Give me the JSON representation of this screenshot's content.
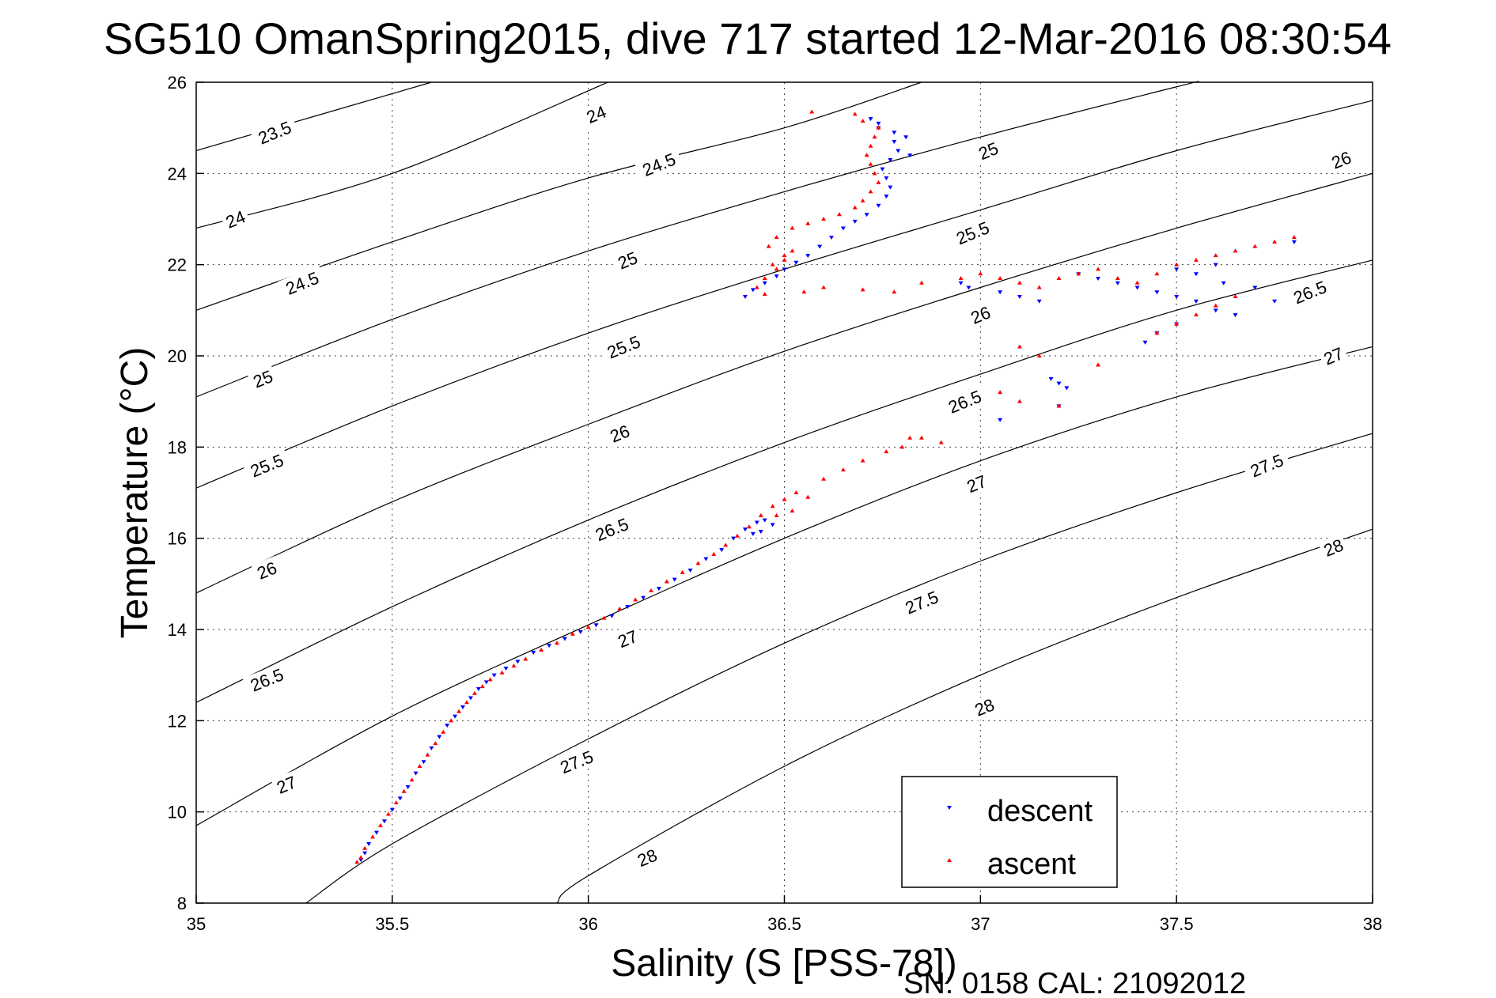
{
  "chart_data": {
    "type": "scatter",
    "title": "SG510 OmanSpring2015, dive 717 started 12-Mar-2016 08:30:54",
    "xlabel": "Salinity (S [PSS-78])",
    "ylabel": "Temperature (°C)",
    "xlim": [
      35,
      38
    ],
    "ylim": [
      8,
      26
    ],
    "x_ticks": [
      "35",
      "35.5",
      "36",
      "36.5",
      "37",
      "37.5",
      "38"
    ],
    "y_ticks": [
      "8",
      "10",
      "12",
      "14",
      "16",
      "18",
      "20",
      "22",
      "24",
      "26"
    ],
    "grid": true,
    "legend_position": "bottom-right",
    "footer": "SN: 0158  CAL: 21092012",
    "contours": {
      "color": "#000000",
      "lines": [
        {
          "level": "23.5",
          "points": [
            [
              35.0,
              24.5
            ],
            [
              35.6,
              26.0
            ]
          ]
        },
        {
          "level": "24",
          "points": [
            [
              35.0,
              22.8
            ],
            [
              35.5,
              24.0
            ],
            [
              36.05,
              26.0
            ]
          ]
        },
        {
          "level": "24.5",
          "points": [
            [
              35.0,
              21.0
            ],
            [
              35.5,
              22.5
            ],
            [
              36.0,
              23.9
            ],
            [
              36.5,
              25.0
            ],
            [
              36.85,
              26.0
            ]
          ]
        },
        {
          "level": "25",
          "points": [
            [
              35.0,
              19.1
            ],
            [
              35.5,
              20.8
            ],
            [
              36.0,
              22.3
            ],
            [
              36.5,
              23.6
            ],
            [
              37.0,
              24.8
            ],
            [
              37.5,
              25.9
            ],
            [
              37.55,
              26.0
            ]
          ]
        },
        {
          "level": "25.5",
          "points": [
            [
              35.0,
              17.1
            ],
            [
              35.5,
              18.9
            ],
            [
              36.0,
              20.5
            ],
            [
              36.5,
              21.9
            ],
            [
              37.0,
              23.2
            ],
            [
              37.5,
              24.5
            ],
            [
              38.0,
              25.6
            ]
          ]
        },
        {
          "level": "26",
          "points": [
            [
              35.0,
              14.8
            ],
            [
              35.5,
              16.8
            ],
            [
              36.0,
              18.5
            ],
            [
              36.5,
              20.1
            ],
            [
              37.0,
              21.5
            ],
            [
              37.5,
              22.8
            ],
            [
              38.0,
              24.0
            ]
          ]
        },
        {
          "level": "26.5",
          "points": [
            [
              35.0,
              12.4
            ],
            [
              35.5,
              14.5
            ],
            [
              36.0,
              16.4
            ],
            [
              36.5,
              18.1
            ],
            [
              37.0,
              19.6
            ],
            [
              37.5,
              21.0
            ],
            [
              38.0,
              22.1
            ]
          ]
        },
        {
          "level": "27",
          "points": [
            [
              35.0,
              9.7
            ],
            [
              35.5,
              12.1
            ],
            [
              36.0,
              14.1
            ],
            [
              36.5,
              16.0
            ],
            [
              37.0,
              17.7
            ],
            [
              37.5,
              19.1
            ],
            [
              38.0,
              20.2
            ]
          ]
        },
        {
          "level": "27.5",
          "points": [
            [
              35.28,
              8.0
            ],
            [
              35.5,
              9.3
            ],
            [
              36.0,
              11.6
            ],
            [
              36.5,
              13.7
            ],
            [
              37.0,
              15.5
            ],
            [
              37.5,
              17.0
            ],
            [
              38.0,
              18.3
            ]
          ]
        },
        {
          "level": "28",
          "points": [
            [
              35.92,
              8.0
            ],
            [
              36.0,
              8.6
            ],
            [
              36.5,
              11.0
            ],
            [
              37.0,
              13.0
            ],
            [
              37.5,
              14.7
            ],
            [
              38.0,
              16.2
            ]
          ]
        }
      ],
      "labels": [
        {
          "text": "23.5",
          "at": [
            35.2,
            24.9
          ]
        },
        {
          "text": "24",
          "at": [
            35.1,
            23.0
          ]
        },
        {
          "text": "24",
          "at": [
            36.02,
            25.3
          ]
        },
        {
          "text": "24.5",
          "at": [
            35.27,
            21.6
          ]
        },
        {
          "text": "24.5",
          "at": [
            36.18,
            24.2
          ]
        },
        {
          "text": "25",
          "at": [
            35.17,
            19.5
          ]
        },
        {
          "text": "25",
          "at": [
            36.1,
            22.1
          ]
        },
        {
          "text": "25",
          "at": [
            37.02,
            24.5
          ]
        },
        {
          "text": "25.5",
          "at": [
            35.18,
            17.6
          ]
        },
        {
          "text": "25.5",
          "at": [
            36.09,
            20.2
          ]
        },
        {
          "text": "25.5",
          "at": [
            36.98,
            22.7
          ]
        },
        {
          "text": "26",
          "at": [
            35.18,
            15.3
          ]
        },
        {
          "text": "26",
          "at": [
            36.08,
            18.3
          ]
        },
        {
          "text": "26",
          "at": [
            37.0,
            20.9
          ]
        },
        {
          "text": "26",
          "at": [
            37.92,
            24.3
          ]
        },
        {
          "text": "26.5",
          "at": [
            35.18,
            12.9
          ]
        },
        {
          "text": "26.5",
          "at": [
            36.06,
            16.2
          ]
        },
        {
          "text": "26.5",
          "at": [
            36.96,
            19.0
          ]
        },
        {
          "text": "26.5",
          "at": [
            37.84,
            21.4
          ]
        },
        {
          "text": "27",
          "at": [
            35.23,
            10.6
          ]
        },
        {
          "text": "27",
          "at": [
            36.1,
            13.8
          ]
        },
        {
          "text": "27",
          "at": [
            36.99,
            17.2
          ]
        },
        {
          "text": "27",
          "at": [
            37.9,
            20.0
          ]
        },
        {
          "text": "27.5",
          "at": [
            35.97,
            11.1
          ]
        },
        {
          "text": "27.5",
          "at": [
            36.85,
            14.6
          ]
        },
        {
          "text": "27.5",
          "at": [
            37.73,
            17.6
          ]
        },
        {
          "text": "28",
          "at": [
            36.15,
            9.0
          ]
        },
        {
          "text": "28",
          "at": [
            37.01,
            12.3
          ]
        },
        {
          "text": "28",
          "at": [
            37.9,
            15.8
          ]
        }
      ]
    },
    "series": [
      {
        "name": "descent",
        "color": "#0000ff",
        "marker": "triangle-down",
        "x": [
          35.42,
          35.43,
          35.44,
          35.46,
          35.48,
          35.5,
          35.52,
          35.54,
          35.56,
          35.58,
          35.6,
          35.62,
          35.64,
          35.66,
          35.68,
          35.7,
          35.72,
          35.74,
          35.76,
          35.79,
          35.82,
          35.86,
          35.9,
          35.94,
          35.98,
          36.02,
          36.06,
          36.1,
          36.14,
          36.18,
          36.22,
          36.26,
          36.3,
          36.34,
          36.37,
          36.4,
          36.43,
          36.45,
          36.47,
          36.44,
          36.42,
          36.4,
          36.42,
          36.45,
          36.48,
          36.5,
          36.53,
          36.56,
          36.59,
          36.62,
          36.65,
          36.68,
          36.71,
          36.74,
          36.76,
          36.77,
          36.76,
          36.75,
          36.77,
          36.79,
          36.81,
          36.78,
          36.74,
          36.72,
          36.74,
          36.78,
          36.82,
          36.95,
          36.97,
          37.05,
          37.1,
          37.15,
          37.2,
          37.22,
          37.18,
          37.25,
          37.3,
          37.35,
          37.4,
          37.45,
          37.5,
          37.55,
          37.6,
          37.65,
          37.62,
          37.55,
          37.5,
          37.6,
          37.7,
          37.75,
          37.8,
          37.5,
          37.45,
          37.42,
          37.2,
          37.05
        ],
        "y": [
          8.95,
          9.1,
          9.3,
          9.55,
          9.8,
          10.05,
          10.3,
          10.55,
          10.85,
          11.1,
          11.4,
          11.65,
          11.9,
          12.1,
          12.3,
          12.5,
          12.7,
          12.85,
          13.0,
          13.15,
          13.3,
          13.5,
          13.65,
          13.8,
          13.95,
          14.1,
          14.3,
          14.5,
          14.7,
          14.9,
          15.1,
          15.3,
          15.55,
          15.75,
          16.0,
          16.2,
          16.35,
          16.4,
          16.3,
          16.15,
          16.1,
          21.3,
          21.45,
          21.6,
          21.75,
          21.9,
          22.05,
          22.2,
          22.4,
          22.6,
          22.8,
          22.95,
          23.1,
          23.3,
          23.5,
          23.7,
          23.9,
          24.1,
          24.3,
          24.5,
          24.8,
          24.9,
          25.0,
          25.2,
          25.1,
          24.7,
          24.4,
          21.6,
          21.5,
          21.4,
          21.3,
          21.2,
          19.4,
          19.3,
          19.5,
          21.8,
          21.7,
          21.6,
          21.5,
          21.4,
          21.3,
          21.2,
          21.0,
          20.9,
          21.6,
          21.8,
          21.9,
          22.0,
          21.5,
          21.2,
          22.5,
          20.7,
          20.5,
          20.3,
          18.9,
          18.6
        ]
      },
      {
        "name": "ascent",
        "color": "#ff0000",
        "marker": "triangle-up",
        "x": [
          35.41,
          35.42,
          35.43,
          35.45,
          35.47,
          35.49,
          35.51,
          35.53,
          35.55,
          35.57,
          35.59,
          35.61,
          35.63,
          35.65,
          35.67,
          35.69,
          35.71,
          35.73,
          35.75,
          35.78,
          35.81,
          35.84,
          35.88,
          35.92,
          35.96,
          36.0,
          36.04,
          36.08,
          36.12,
          36.16,
          36.2,
          36.24,
          36.28,
          36.32,
          36.35,
          36.38,
          36.41,
          36.44,
          36.47,
          36.5,
          36.53,
          36.56,
          36.52,
          36.48,
          36.6,
          36.65,
          36.7,
          36.76,
          36.8,
          36.82,
          36.85,
          36.9,
          36.45,
          36.43,
          36.45,
          36.48,
          36.5,
          36.52,
          36.5,
          36.47,
          36.46,
          36.48,
          36.52,
          36.56,
          36.6,
          36.64,
          36.68,
          36.7,
          36.72,
          36.74,
          36.73,
          36.72,
          36.71,
          36.72,
          36.73,
          36.74,
          36.7,
          36.68,
          36.57,
          36.55,
          36.6,
          36.7,
          36.78,
          36.85,
          36.95,
          37.0,
          37.05,
          37.1,
          37.15,
          37.2,
          37.25,
          37.3,
          37.35,
          37.4,
          37.45,
          37.5,
          37.55,
          37.6,
          37.65,
          37.7,
          37.75,
          37.8,
          37.05,
          37.1,
          37.2,
          37.3,
          37.1,
          37.15,
          37.45,
          37.5,
          37.55,
          37.6,
          37.65
        ],
        "y": [
          8.9,
          9.0,
          9.2,
          9.45,
          9.7,
          9.95,
          10.2,
          10.45,
          10.7,
          11.0,
          11.25,
          11.5,
          11.75,
          12.0,
          12.2,
          12.4,
          12.6,
          12.75,
          12.9,
          13.05,
          13.2,
          13.35,
          13.55,
          13.7,
          13.9,
          14.05,
          14.25,
          14.45,
          14.65,
          14.85,
          15.05,
          15.25,
          15.45,
          15.65,
          15.85,
          16.05,
          16.25,
          16.5,
          16.7,
          16.85,
          17.0,
          16.9,
          16.6,
          16.5,
          17.3,
          17.5,
          17.7,
          17.9,
          18.0,
          18.2,
          18.2,
          18.1,
          21.35,
          21.5,
          21.7,
          21.9,
          22.1,
          22.3,
          22.2,
          22.0,
          22.4,
          22.6,
          22.8,
          22.9,
          23.0,
          23.1,
          23.25,
          23.4,
          23.6,
          23.8,
          24.0,
          24.2,
          24.4,
          24.6,
          24.8,
          25.0,
          25.15,
          25.3,
          25.35,
          21.4,
          21.5,
          21.45,
          21.4,
          21.6,
          21.7,
          21.8,
          21.7,
          21.6,
          21.5,
          21.7,
          21.8,
          21.9,
          21.7,
          21.6,
          21.8,
          22.0,
          22.1,
          22.2,
          22.3,
          22.4,
          22.5,
          22.6,
          19.2,
          19.0,
          18.9,
          19.8,
          20.2,
          20.0,
          20.5,
          20.7,
          20.9,
          21.1,
          21.3
        ]
      }
    ]
  }
}
